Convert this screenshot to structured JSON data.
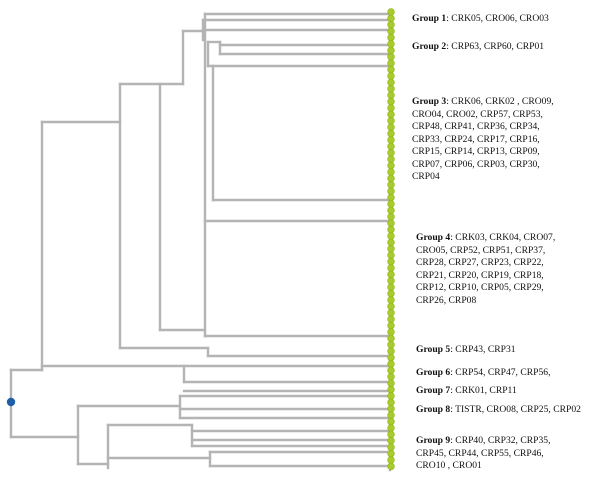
{
  "colors": {
    "branch": "#b4b4b4",
    "leaf": "#a8cc2c",
    "leaf_edge": "#8fb21e",
    "root_node": "#1f5fa8"
  },
  "groups": [
    {
      "name": "Group 1",
      "members": "CRK05, CRO06, CRO03"
    },
    {
      "name": "Group 2",
      "members": "CRP63, CRP60, CRP01"
    },
    {
      "name": "Group 3",
      "members": "CRK06, CRK02 , CRO09,\nCRO04, CRO02, CRP57, CRP53,\nCRP48, CRP41, CRP36, CRP34,\nCRP33, CRP24, CRP17, CRP16,\nCRP15, CRP14, CRP13, CRP09,\nCRP07, CRP06, CRP03, CRP30,\nCRP04"
    },
    {
      "name": "Group 4",
      "members": "CRK03, CRK04, CRO07,\nCRO05, CRP52, CRP51, CRP37,\nCRP28, CRP27, CRP23, CRP22,\nCRP21, CRP20, CRP19, CRP18,\nCRP12, CRP10, CRP05, CRP29,\nCRP26, CRP08"
    },
    {
      "name": "Group 5",
      "members": "CRP43, CRP31"
    },
    {
      "name": "Group 6",
      "members": "CRP54, CRP47, CRP56,"
    },
    {
      "name": "Group 7",
      "members": "CRK01, CRP11"
    },
    {
      "name": "Group 8",
      "members": "TISTR, CRO08, CRP25, CRP02"
    },
    {
      "name": "Group 9",
      "members": "CRP40, CRP32, CRP35,\nCRP45, CRP44, CRP55, CRP46,\nCRO10 , CRO01"
    }
  ]
}
